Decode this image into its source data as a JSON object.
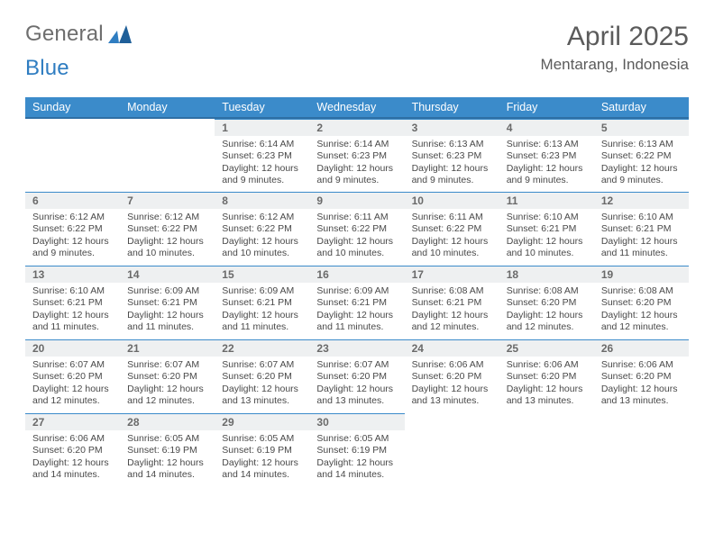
{
  "brand": {
    "general": "General",
    "blue": "Blue"
  },
  "title": "April 2025",
  "location": "Mentarang, Indonesia",
  "colors": {
    "header_bg": "#3b8bca",
    "header_text": "#ffffff",
    "daynum_bg": "#eef0f1",
    "row_divider": "#3b8bca",
    "text": "#494949",
    "title_text": "#5b5b5b",
    "logo_gray": "#6e6e6e",
    "logo_blue": "#2f7dc1"
  },
  "weekdays": [
    "Sunday",
    "Monday",
    "Tuesday",
    "Wednesday",
    "Thursday",
    "Friday",
    "Saturday"
  ],
  "weeks": [
    [
      null,
      null,
      {
        "n": "1",
        "sr": "6:14 AM",
        "ss": "6:23 PM",
        "dl": "12 hours and 9 minutes."
      },
      {
        "n": "2",
        "sr": "6:14 AM",
        "ss": "6:23 PM",
        "dl": "12 hours and 9 minutes."
      },
      {
        "n": "3",
        "sr": "6:13 AM",
        "ss": "6:23 PM",
        "dl": "12 hours and 9 minutes."
      },
      {
        "n": "4",
        "sr": "6:13 AM",
        "ss": "6:23 PM",
        "dl": "12 hours and 9 minutes."
      },
      {
        "n": "5",
        "sr": "6:13 AM",
        "ss": "6:22 PM",
        "dl": "12 hours and 9 minutes."
      }
    ],
    [
      {
        "n": "6",
        "sr": "6:12 AM",
        "ss": "6:22 PM",
        "dl": "12 hours and 9 minutes."
      },
      {
        "n": "7",
        "sr": "6:12 AM",
        "ss": "6:22 PM",
        "dl": "12 hours and 10 minutes."
      },
      {
        "n": "8",
        "sr": "6:12 AM",
        "ss": "6:22 PM",
        "dl": "12 hours and 10 minutes."
      },
      {
        "n": "9",
        "sr": "6:11 AM",
        "ss": "6:22 PM",
        "dl": "12 hours and 10 minutes."
      },
      {
        "n": "10",
        "sr": "6:11 AM",
        "ss": "6:22 PM",
        "dl": "12 hours and 10 minutes."
      },
      {
        "n": "11",
        "sr": "6:10 AM",
        "ss": "6:21 PM",
        "dl": "12 hours and 10 minutes."
      },
      {
        "n": "12",
        "sr": "6:10 AM",
        "ss": "6:21 PM",
        "dl": "12 hours and 11 minutes."
      }
    ],
    [
      {
        "n": "13",
        "sr": "6:10 AM",
        "ss": "6:21 PM",
        "dl": "12 hours and 11 minutes."
      },
      {
        "n": "14",
        "sr": "6:09 AM",
        "ss": "6:21 PM",
        "dl": "12 hours and 11 minutes."
      },
      {
        "n": "15",
        "sr": "6:09 AM",
        "ss": "6:21 PM",
        "dl": "12 hours and 11 minutes."
      },
      {
        "n": "16",
        "sr": "6:09 AM",
        "ss": "6:21 PM",
        "dl": "12 hours and 11 minutes."
      },
      {
        "n": "17",
        "sr": "6:08 AM",
        "ss": "6:21 PM",
        "dl": "12 hours and 12 minutes."
      },
      {
        "n": "18",
        "sr": "6:08 AM",
        "ss": "6:20 PM",
        "dl": "12 hours and 12 minutes."
      },
      {
        "n": "19",
        "sr": "6:08 AM",
        "ss": "6:20 PM",
        "dl": "12 hours and 12 minutes."
      }
    ],
    [
      {
        "n": "20",
        "sr": "6:07 AM",
        "ss": "6:20 PM",
        "dl": "12 hours and 12 minutes."
      },
      {
        "n": "21",
        "sr": "6:07 AM",
        "ss": "6:20 PM",
        "dl": "12 hours and 12 minutes."
      },
      {
        "n": "22",
        "sr": "6:07 AM",
        "ss": "6:20 PM",
        "dl": "12 hours and 13 minutes."
      },
      {
        "n": "23",
        "sr": "6:07 AM",
        "ss": "6:20 PM",
        "dl": "12 hours and 13 minutes."
      },
      {
        "n": "24",
        "sr": "6:06 AM",
        "ss": "6:20 PM",
        "dl": "12 hours and 13 minutes."
      },
      {
        "n": "25",
        "sr": "6:06 AM",
        "ss": "6:20 PM",
        "dl": "12 hours and 13 minutes."
      },
      {
        "n": "26",
        "sr": "6:06 AM",
        "ss": "6:20 PM",
        "dl": "12 hours and 13 minutes."
      }
    ],
    [
      {
        "n": "27",
        "sr": "6:06 AM",
        "ss": "6:20 PM",
        "dl": "12 hours and 14 minutes."
      },
      {
        "n": "28",
        "sr": "6:05 AM",
        "ss": "6:19 PM",
        "dl": "12 hours and 14 minutes."
      },
      {
        "n": "29",
        "sr": "6:05 AM",
        "ss": "6:19 PM",
        "dl": "12 hours and 14 minutes."
      },
      {
        "n": "30",
        "sr": "6:05 AM",
        "ss": "6:19 PM",
        "dl": "12 hours and 14 minutes."
      },
      null,
      null,
      null
    ]
  ],
  "labels": {
    "sunrise": "Sunrise: ",
    "sunset": "Sunset: ",
    "daylight": "Daylight: "
  }
}
